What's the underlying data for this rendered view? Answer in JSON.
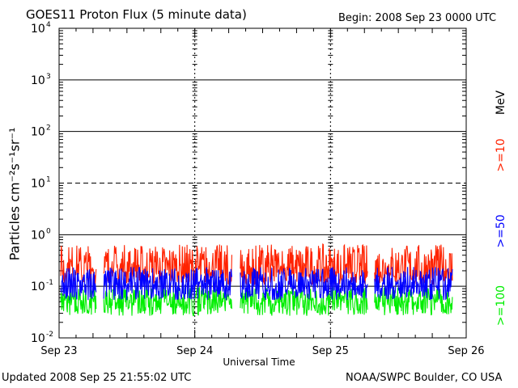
{
  "title": "GOES11 Proton Flux (5 minute data)",
  "begin": "Begin: 2008 Sep 23 0000 UTC",
  "footer": {
    "updated": "Updated 2008 Sep 25 21:55:02 UTC",
    "credit": "NOAA/SWPC Boulder, CO USA"
  },
  "chart_data": {
    "type": "line",
    "title": "GOES11 Proton Flux (5 minute data)",
    "xlabel": "Universal Time",
    "ylabel": "Particles cm⁻²s⁻¹sr⁻¹",
    "yscale": "log",
    "ylim": [
      0.01,
      10000
    ],
    "y_ticks": [
      {
        "base": "10",
        "exp": "-2"
      },
      {
        "base": "10",
        "exp": "-1"
      },
      {
        "base": "10",
        "exp": "0"
      },
      {
        "base": "10",
        "exp": "1"
      },
      {
        "base": "10",
        "exp": "2"
      },
      {
        "base": "10",
        "exp": "3"
      },
      {
        "base": "10",
        "exp": "4"
      }
    ],
    "x_ticks": [
      "Sep 23",
      "Sep 24",
      "Sep 25",
      "Sep 26"
    ],
    "xlim_hours": [
      0,
      72
    ],
    "data_gaps_hours": [
      [
        6.6,
        7.8
      ],
      [
        30.6,
        32.0
      ],
      [
        54.6,
        55.8
      ],
      [
        69.6,
        72
      ]
    ],
    "legend_unit": "MeV",
    "series": [
      {
        "name": ">=10",
        "color": "#ff2200",
        "base": 0.2,
        "min": 0.1,
        "max": 0.7
      },
      {
        "name": ">=50",
        "color": "#0000ff",
        "base": 0.1,
        "min": 0.05,
        "max": 0.25
      },
      {
        "name": ">=100",
        "color": "#00ee00",
        "base": 0.05,
        "min": 0.025,
        "max": 0.1
      }
    ]
  }
}
